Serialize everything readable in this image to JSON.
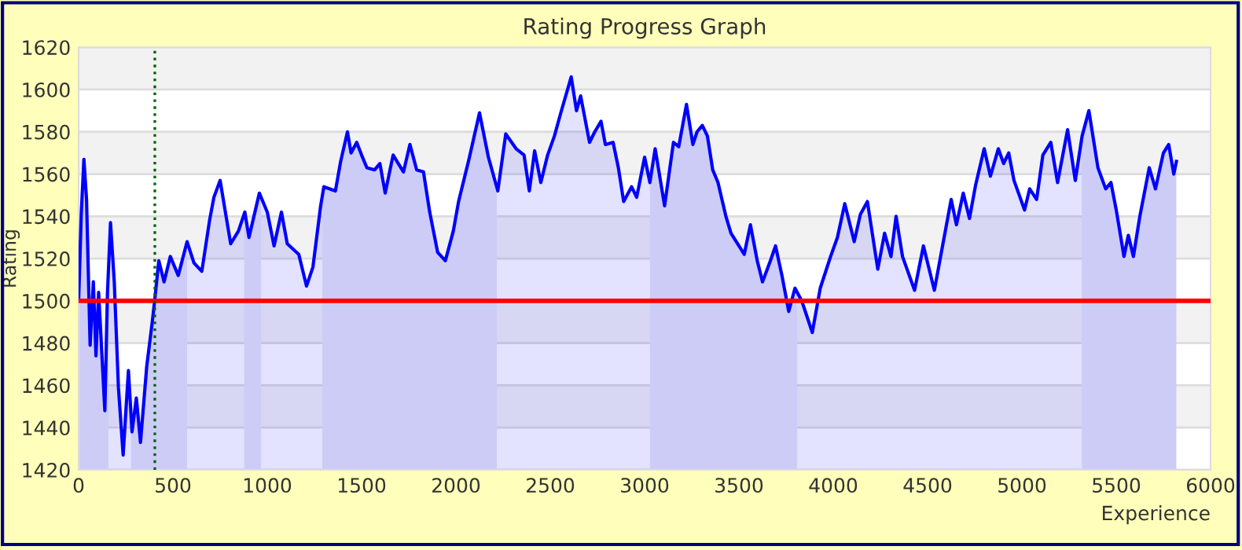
{
  "chart_data": {
    "type": "area",
    "title": "Rating Progress Graph",
    "xlabel": "Experience",
    "ylabel": "Rating",
    "xlim": [
      0,
      6000
    ],
    "xticks": [
      0,
      500,
      1000,
      1500,
      2000,
      2500,
      3000,
      3500,
      4000,
      4500,
      5000,
      5500,
      6000
    ],
    "ylim": [
      1420,
      1620
    ],
    "yticks": [
      1420,
      1440,
      1460,
      1480,
      1500,
      1520,
      1540,
      1560,
      1580,
      1600,
      1620
    ],
    "grid": "y",
    "line_style": "solid",
    "series": [
      {
        "color": "#0000ff",
        "x": [
          0,
          14,
          28,
          42,
          61,
          78,
          92,
          106,
          139,
          153,
          169,
          189,
          211,
          236,
          264,
          283,
          306,
          328,
          361,
          389,
          403,
          425,
          453,
          486,
          528,
          575,
          611,
          653,
          694,
          717,
          750,
          806,
          847,
          881,
          903,
          958,
          1000,
          1036,
          1075,
          1106,
          1167,
          1208,
          1242,
          1283,
          1300,
          1361,
          1389,
          1425,
          1444,
          1474,
          1500,
          1528,
          1569,
          1597,
          1625,
          1667,
          1722,
          1756,
          1792,
          1828,
          1861,
          1903,
          1944,
          1986,
          2014,
          2069,
          2125,
          2172,
          2222,
          2264,
          2319,
          2361,
          2389,
          2417,
          2450,
          2486,
          2522,
          2556,
          2611,
          2639,
          2661,
          2708,
          2736,
          2769,
          2792,
          2833,
          2861,
          2889,
          2931,
          2958,
          3000,
          3028,
          3056,
          3106,
          3153,
          3181,
          3222,
          3256,
          3278,
          3306,
          3333,
          3361,
          3389,
          3431,
          3458,
          3500,
          3528,
          3561,
          3597,
          3625,
          3667,
          3694,
          3728,
          3764,
          3797,
          3833,
          3889,
          3931,
          3986,
          4022,
          4061,
          4111,
          4144,
          4181,
          4236,
          4272,
          4306,
          4333,
          4367,
          4431,
          4478,
          4536,
          4569,
          4625,
          4653,
          4689,
          4722,
          4755,
          4800,
          4833,
          4875,
          4903,
          4930,
          4958,
          5014,
          5041,
          5078,
          5111,
          5153,
          5189,
          5242,
          5283,
          5319,
          5355,
          5403,
          5444,
          5472,
          5500,
          5541,
          5564,
          5591,
          5625,
          5675,
          5708,
          5750,
          5778,
          5805,
          5819
        ],
        "values": [
          1500,
          1541,
          1567,
          1548,
          1479,
          1509,
          1474,
          1504,
          1448,
          1504,
          1537,
          1509,
          1459,
          1427,
          1467,
          1438,
          1454,
          1433,
          1469,
          1489,
          1500,
          1519,
          1509,
          1521,
          1512,
          1528,
          1518,
          1514,
          1538,
          1549,
          1557,
          1527,
          1533,
          1542,
          1530,
          1551,
          1542,
          1526,
          1542,
          1527,
          1522,
          1507,
          1516,
          1545,
          1554,
          1552,
          1566,
          1580,
          1570,
          1575,
          1569,
          1563,
          1562,
          1565,
          1551,
          1569,
          1561,
          1574,
          1562,
          1561,
          1542,
          1523,
          1519,
          1533,
          1547,
          1567,
          1589,
          1568,
          1552,
          1579,
          1572,
          1569,
          1552,
          1571,
          1556,
          1569,
          1578,
          1589,
          1606,
          1590,
          1597,
          1575,
          1580,
          1585,
          1574,
          1575,
          1563,
          1547,
          1554,
          1549,
          1568,
          1556,
          1572,
          1545,
          1575,
          1573,
          1593,
          1574,
          1580,
          1583,
          1578,
          1562,
          1556,
          1540,
          1532,
          1526,
          1522,
          1536,
          1519,
          1509,
          1519,
          1526,
          1512,
          1495,
          1506,
          1500,
          1485,
          1506,
          1521,
          1530,
          1546,
          1528,
          1541,
          1547,
          1515,
          1532,
          1521,
          1540,
          1521,
          1505,
          1526,
          1505,
          1521,
          1548,
          1536,
          1551,
          1539,
          1555,
          1572,
          1559,
          1572,
          1565,
          1570,
          1557,
          1543,
          1553,
          1548,
          1569,
          1575,
          1556,
          1581,
          1557,
          1578,
          1590,
          1563,
          1553,
          1556,
          1543,
          1521,
          1531,
          1521,
          1540,
          1563,
          1553,
          1570,
          1574,
          1560,
          1566
        ]
      }
    ],
    "bands": [
      {
        "axis": "y",
        "from": 1440,
        "to": 1460,
        "color": "#f2f2f2"
      },
      {
        "axis": "y",
        "from": 1480,
        "to": 1500,
        "color": "#f2f2f2"
      },
      {
        "axis": "y",
        "from": 1520,
        "to": 1540,
        "color": "#f2f2f2"
      },
      {
        "axis": "y",
        "from": 1560,
        "to": 1580,
        "color": "#f2f2f2"
      },
      {
        "axis": "y",
        "from": 1600,
        "to": 1620,
        "color": "#f2f2f2"
      },
      {
        "axis": "x",
        "from": 0,
        "to": 158,
        "color": "#e6e6f7"
      },
      {
        "axis": "x",
        "from": 278,
        "to": 575,
        "color": "#e6e6f7"
      },
      {
        "axis": "x",
        "from": 878,
        "to": 967,
        "color": "#e6e6f7"
      },
      {
        "axis": "x",
        "from": 1292,
        "to": 2217,
        "color": "#e6e6f7"
      },
      {
        "axis": "x",
        "from": 3028,
        "to": 3808,
        "color": "#e6e6f7"
      },
      {
        "axis": "x",
        "from": 5317,
        "to": 5819,
        "color": "#e6e6f7"
      }
    ],
    "ref_lines": [
      {
        "axis": "y",
        "value": 1500,
        "color": "#ff0000",
        "line_style": "solid"
      },
      {
        "axis": "x",
        "value": 404,
        "color": "#006400",
        "line_style": "dotted"
      }
    ]
  }
}
